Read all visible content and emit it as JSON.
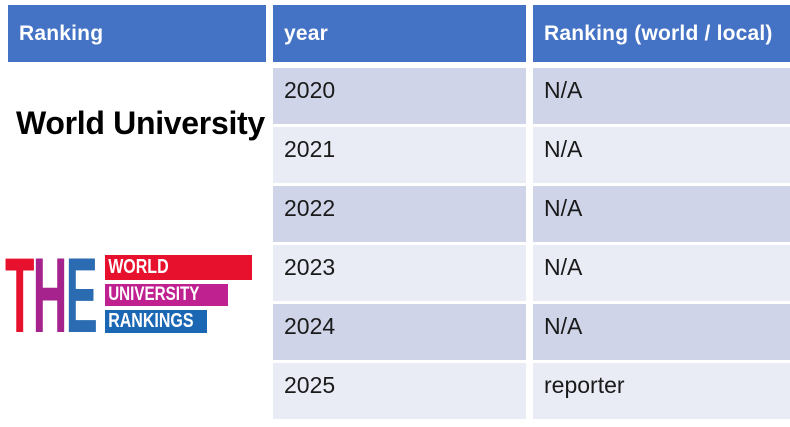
{
  "table": {
    "header_bg": "#4472c4",
    "header_text_color": "#ffffff",
    "band_dark": "#cfd4e8",
    "band_light": "#e9ebf5",
    "headers": {
      "ranking": "Ranking",
      "year": "year",
      "world_local": "Ranking (world / local)"
    },
    "rows": [
      {
        "year": "2020",
        "ranking": "N/A"
      },
      {
        "year": "2021",
        "ranking": "N/A"
      },
      {
        "year": "2022",
        "ranking": "N/A"
      },
      {
        "year": "2023",
        "ranking": "N/A"
      },
      {
        "year": "2024",
        "ranking": "N/A"
      },
      {
        "year": "2025",
        "ranking": "reporter"
      }
    ]
  },
  "left_panel": {
    "title": "World University",
    "logo": {
      "letters": [
        {
          "char": "T",
          "color": "#e8112d"
        },
        {
          "char": "H",
          "color": "#a6228c"
        },
        {
          "char": "E",
          "color": "#2a6bb2"
        }
      ],
      "bars": [
        {
          "label": "WORLD",
          "color": "#e8112d"
        },
        {
          "label": "UNIVERSITY",
          "color": "#c02190"
        },
        {
          "label": "RANKINGS",
          "color": "#1c67b3"
        }
      ]
    }
  }
}
